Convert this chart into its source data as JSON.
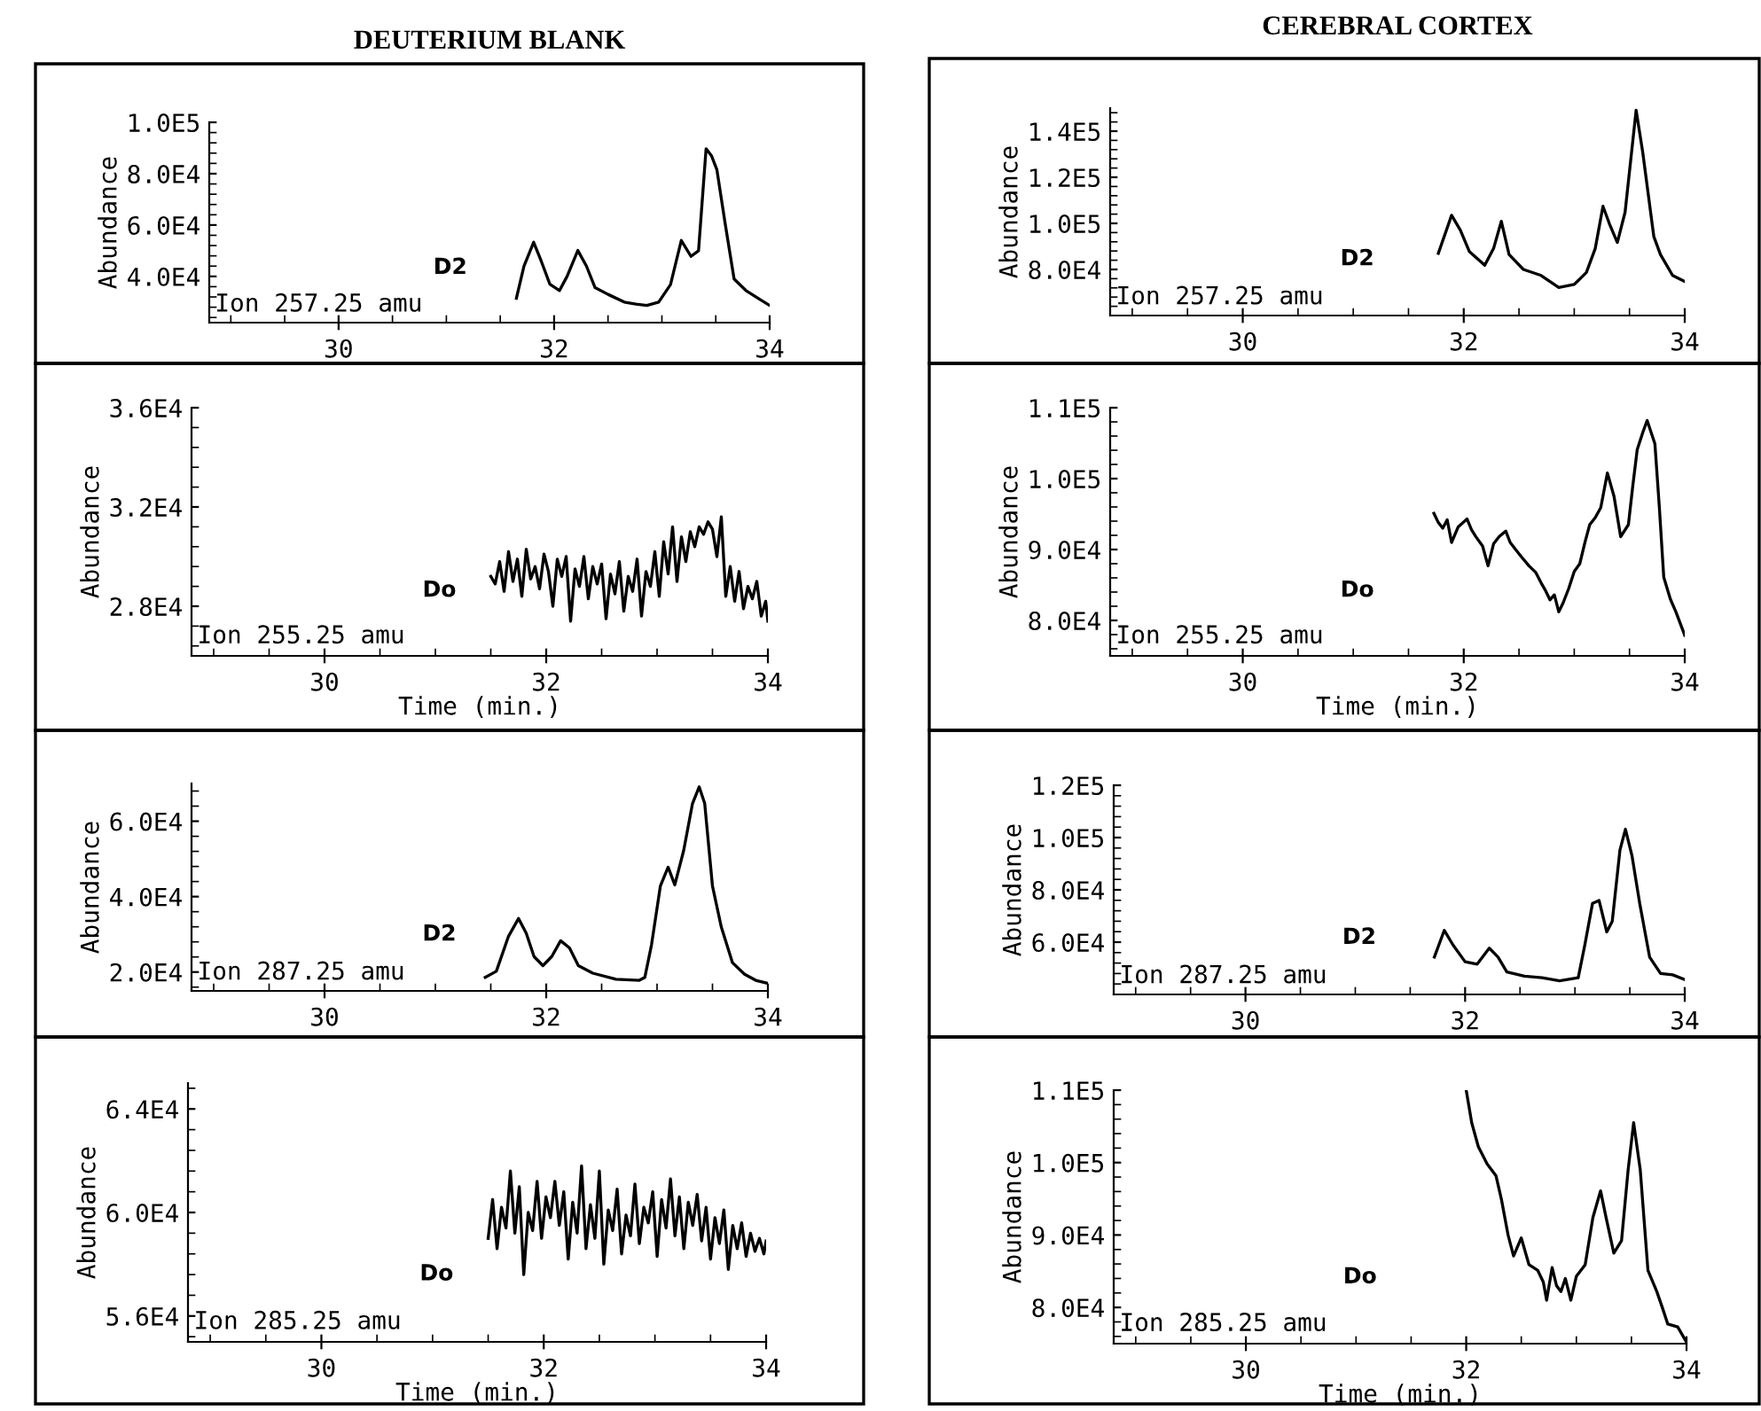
{
  "chart_data": [
    {
      "type": "line",
      "title": "DEUTERIUM BLANK",
      "ylabel": "Abundance",
      "color": "#000000",
      "annotations": [
        "D2",
        "Ion 257.25 amu"
      ],
      "xlim": [
        28.8,
        34
      ],
      "xticks": [
        30,
        32,
        34
      ],
      "ylim": [
        22000,
        100000
      ],
      "yticks": [
        {
          "value": 40000,
          "label": "4.0E4"
        },
        {
          "value": 60000,
          "label": "6.0E4"
        },
        {
          "value": 80000,
          "label": "8.0E4"
        },
        {
          "value": 100000,
          "label": "1.0E5"
        }
      ],
      "x": [
        31.65,
        31.72,
        31.81,
        31.88,
        31.96,
        32.05,
        32.12,
        32.22,
        32.3,
        32.38,
        32.5,
        32.65,
        32.76,
        32.86,
        32.97,
        33.08,
        33.18,
        33.27,
        33.34,
        33.41,
        33.46,
        33.51,
        33.59,
        33.67,
        33.78,
        33.91,
        34.0
      ],
      "values": [
        31500,
        44000,
        53300,
        46000,
        37000,
        34500,
        40000,
        50100,
        44000,
        35600,
        33000,
        30000,
        29200,
        28700,
        30000,
        36800,
        54000,
        47800,
        50000,
        89700,
        87000,
        81600,
        59800,
        39000,
        34500,
        31000,
        28700
      ]
    },
    {
      "type": "line",
      "title": "CEREBRAL CORTEX",
      "ylabel": "Abundance",
      "color": "#000000",
      "annotations": [
        "D2",
        "Ion 257.25 amu"
      ],
      "xlim": [
        28.8,
        34
      ],
      "xticks": [
        30,
        32,
        34
      ],
      "ylim": [
        60000,
        150000
      ],
      "yticks": [
        {
          "value": 80000,
          "label": "8.0E4"
        },
        {
          "value": 100000,
          "label": "1.0E5"
        },
        {
          "value": 120000,
          "label": "1.2E5"
        },
        {
          "value": 140000,
          "label": "1.4E5"
        }
      ],
      "x": [
        31.77,
        31.89,
        31.97,
        32.05,
        32.19,
        32.27,
        32.34,
        32.41,
        32.54,
        32.7,
        32.86,
        33.0,
        33.11,
        33.19,
        33.26,
        33.32,
        33.39,
        33.46,
        33.56,
        33.62,
        33.72,
        33.78,
        33.89,
        34.0
      ],
      "values": [
        87000,
        103500,
        97000,
        87800,
        81800,
        89100,
        100900,
        86500,
        80000,
        77400,
        72200,
        73500,
        78700,
        89100,
        107400,
        99600,
        91700,
        104800,
        149100,
        130800,
        94300,
        86500,
        77400,
        74800
      ]
    },
    {
      "type": "line",
      "ylabel": "Abundance",
      "xlabel": "Time (min.)",
      "color": "#000000",
      "annotations": [
        "Do",
        "Ion 255.25 amu"
      ],
      "xlim": [
        28.8,
        34
      ],
      "xticks": [
        30,
        32,
        34
      ],
      "ylim": [
        26000,
        36000
      ],
      "yticks": [
        {
          "value": 28000,
          "label": "2.8E4"
        },
        {
          "value": 32000,
          "label": "3.2E4"
        },
        {
          "value": 36000,
          "label": "3.6E4"
        }
      ],
      "x": [
        31.5,
        31.54,
        31.58,
        31.62,
        31.66,
        31.7,
        31.74,
        31.78,
        31.82,
        31.86,
        31.9,
        31.94,
        31.98,
        32.02,
        32.06,
        32.1,
        32.14,
        32.18,
        32.22,
        32.26,
        32.3,
        32.34,
        32.38,
        32.42,
        32.46,
        32.5,
        32.54,
        32.58,
        32.62,
        32.66,
        32.7,
        32.74,
        32.78,
        32.82,
        32.86,
        32.9,
        32.94,
        32.98,
        33.02,
        33.06,
        33.1,
        33.14,
        33.18,
        33.22,
        33.26,
        33.3,
        33.34,
        33.38,
        33.42,
        33.46,
        33.5,
        33.54,
        33.58,
        33.62,
        33.66,
        33.7,
        33.74,
        33.78,
        33.82,
        33.86,
        33.9,
        33.94,
        33.98,
        34.0
      ],
      "values": [
        29200,
        28900,
        29800,
        28600,
        30200,
        29000,
        29900,
        28400,
        30300,
        29100,
        29600,
        28700,
        30100,
        29400,
        28000,
        29900,
        29200,
        30000,
        27400,
        29500,
        28800,
        30000,
        28300,
        29600,
        28900,
        29700,
        27500,
        29300,
        28500,
        29800,
        27800,
        29200,
        28600,
        29900,
        27600,
        29400,
        28800,
        30200,
        28400,
        30600,
        29300,
        31200,
        29000,
        30800,
        29800,
        31000,
        30400,
        31200,
        30900,
        31400,
        31100,
        30000,
        31600,
        28400,
        29600,
        28200,
        29400,
        27900,
        28800,
        28300,
        29000,
        27600,
        28200,
        27400
      ]
    },
    {
      "type": "line",
      "ylabel": "Abundance",
      "xlabel": "Time (min.)",
      "color": "#000000",
      "annotations": [
        "Do",
        "Ion 255.25 amu"
      ],
      "xlim": [
        28.8,
        34
      ],
      "xticks": [
        30,
        32,
        34
      ],
      "ylim": [
        75000,
        110000
      ],
      "yticks": [
        {
          "value": 80000,
          "label": "8.0E4"
        },
        {
          "value": 90000,
          "label": "9.0E4"
        },
        {
          "value": 100000,
          "label": "1.0E5"
        },
        {
          "value": 110000,
          "label": "1.1E5"
        }
      ],
      "x": [
        31.73,
        31.77,
        31.81,
        31.85,
        31.89,
        31.95,
        32.03,
        32.07,
        32.11,
        32.17,
        32.22,
        32.27,
        32.32,
        32.38,
        32.42,
        32.46,
        32.52,
        32.59,
        32.65,
        32.7,
        32.74,
        32.78,
        32.82,
        32.86,
        32.9,
        32.95,
        33.0,
        33.05,
        33.1,
        33.14,
        33.19,
        33.24,
        33.3,
        33.36,
        33.42,
        33.49,
        33.53,
        33.57,
        33.62,
        33.66,
        33.73,
        33.77,
        33.81,
        33.87,
        33.92,
        34.0
      ],
      "values": [
        95100,
        93800,
        93000,
        94200,
        91000,
        93200,
        94300,
        92800,
        91800,
        90500,
        87700,
        90800,
        91800,
        92600,
        91000,
        90200,
        89000,
        87700,
        86800,
        85300,
        84200,
        82900,
        83600,
        81200,
        82500,
        84500,
        86900,
        88000,
        91200,
        93500,
        94500,
        95900,
        100800,
        97500,
        91800,
        93500,
        99000,
        104100,
        106500,
        108200,
        104900,
        96000,
        86100,
        83000,
        81200,
        77900
      ]
    },
    {
      "type": "line",
      "ylabel": "Abundance",
      "color": "#000000",
      "annotations": [
        "D2",
        "Ion 287.25 amu"
      ],
      "xlim": [
        28.8,
        34
      ],
      "xticks": [
        30,
        32,
        34
      ],
      "ylim": [
        15000,
        70000
      ],
      "yticks": [
        {
          "value": 20000,
          "label": "2.0E4"
        },
        {
          "value": 40000,
          "label": "4.0E4"
        },
        {
          "value": 60000,
          "label": "6.0E4"
        }
      ],
      "x": [
        31.45,
        31.55,
        31.66,
        31.75,
        31.82,
        31.89,
        31.97,
        32.05,
        32.13,
        32.21,
        32.29,
        32.42,
        32.63,
        32.84,
        32.89,
        32.95,
        33.03,
        33.1,
        33.16,
        33.24,
        33.32,
        33.38,
        33.43,
        33.5,
        33.58,
        33.68,
        33.79,
        33.89,
        34.0
      ],
      "values": [
        18600,
        20200,
        29500,
        34200,
        30300,
        24100,
        21700,
        24100,
        28300,
        26400,
        21700,
        19700,
        18100,
        17800,
        18600,
        27200,
        42800,
        47800,
        43100,
        52200,
        64700,
        69100,
        64700,
        42800,
        31900,
        22500,
        19400,
        17800,
        17000
      ]
    },
    {
      "type": "line",
      "ylabel": "Abundance",
      "color": "#000000",
      "annotations": [
        "D2",
        "Ion 287.25 amu"
      ],
      "xlim": [
        28.8,
        34
      ],
      "xticks": [
        30,
        32,
        34
      ],
      "ylim": [
        40000,
        120000
      ],
      "yticks": [
        {
          "value": 60000,
          "label": "6.0E4"
        },
        {
          "value": 80000,
          "label": "8.0E4"
        },
        {
          "value": 100000,
          "label": "1.0E5"
        },
        {
          "value": 120000,
          "label": "1.2E5"
        }
      ],
      "x": [
        31.72,
        31.81,
        31.89,
        32.0,
        32.11,
        32.22,
        32.3,
        32.38,
        32.54,
        32.7,
        32.86,
        33.03,
        33.09,
        33.16,
        33.22,
        33.29,
        33.34,
        33.41,
        33.46,
        33.52,
        33.59,
        33.68,
        33.78,
        33.89,
        34.0
      ],
      "values": [
        54300,
        64500,
        58900,
        52500,
        51600,
        57700,
        54300,
        48600,
        47000,
        46400,
        45200,
        46400,
        58900,
        74800,
        75900,
        63900,
        68000,
        95200,
        103200,
        93000,
        74800,
        54300,
        48000,
        47500,
        45700
      ]
    },
    {
      "type": "line",
      "ylabel": "Abundance",
      "xlabel": "Time (min.)",
      "color": "#000000",
      "annotations": [
        "Do",
        "Ion 285.25 amu"
      ],
      "xlim": [
        28.8,
        34
      ],
      "xticks": [
        30,
        32,
        34
      ],
      "ylim": [
        55000,
        65000
      ],
      "yticks": [
        {
          "value": 56000,
          "label": "5.6E4"
        },
        {
          "value": 60000,
          "label": "6.0E4"
        },
        {
          "value": 64000,
          "label": "6.4E4"
        }
      ],
      "x": [
        31.5,
        31.54,
        31.58,
        31.62,
        31.66,
        31.7,
        31.74,
        31.78,
        31.82,
        31.86,
        31.9,
        31.94,
        31.98,
        32.02,
        32.06,
        32.1,
        32.14,
        32.18,
        32.22,
        32.26,
        32.3,
        32.34,
        32.38,
        32.42,
        32.46,
        32.5,
        32.54,
        32.58,
        32.62,
        32.66,
        32.7,
        32.74,
        32.78,
        32.82,
        32.86,
        32.9,
        32.94,
        32.98,
        33.02,
        33.06,
        33.1,
        33.14,
        33.18,
        33.22,
        33.26,
        33.3,
        33.34,
        33.38,
        33.42,
        33.46,
        33.5,
        33.54,
        33.58,
        33.62,
        33.66,
        33.7,
        33.74,
        33.78,
        33.82,
        33.86,
        33.9,
        33.94,
        33.98,
        34.0
      ],
      "values": [
        59000,
        60500,
        58600,
        60200,
        59400,
        61600,
        59200,
        61000,
        57600,
        60000,
        59300,
        61200,
        59000,
        60600,
        59800,
        61200,
        59500,
        60800,
        58200,
        60400,
        59200,
        61800,
        58600,
        60300,
        59000,
        61600,
        58000,
        60100,
        59300,
        60900,
        58400,
        59900,
        59100,
        61100,
        58800,
        60200,
        59600,
        60800,
        58300,
        60500,
        59400,
        61300,
        59100,
        60600,
        58600,
        60400,
        59500,
        60700,
        58900,
        60200,
        58200,
        59800,
        58800,
        60100,
        57800,
        59500,
        58600,
        59600,
        58300,
        59200,
        58500,
        59000,
        58400,
        58900
      ]
    },
    {
      "type": "line",
      "ylabel": "Abundance",
      "xlabel": "Time (min.)",
      "color": "#000000",
      "annotations": [
        "Do",
        "Ion 285.25 amu"
      ],
      "xlim": [
        28.8,
        34
      ],
      "xticks": [
        30,
        32,
        34
      ],
      "ylim": [
        75000,
        110000
      ],
      "yticks": [
        {
          "value": 80000,
          "label": "8.0E4"
        },
        {
          "value": 90000,
          "label": "9.0E4"
        },
        {
          "value": 100000,
          "label": "1.0E5"
        },
        {
          "value": 110000,
          "label": "1.1E5"
        }
      ],
      "x": [
        32.0,
        32.05,
        32.11,
        32.19,
        32.27,
        32.32,
        32.38,
        32.43,
        32.5,
        32.57,
        32.65,
        32.7,
        32.73,
        32.78,
        32.82,
        32.86,
        32.9,
        32.95,
        33.0,
        33.08,
        33.15,
        33.22,
        33.27,
        33.34,
        33.41,
        33.47,
        33.52,
        33.58,
        33.65,
        33.73,
        33.78,
        33.83,
        33.92,
        34.0
      ],
      "values": [
        110000,
        105500,
        102200,
        99800,
        98200,
        94900,
        90000,
        87100,
        89600,
        85900,
        85100,
        83500,
        81000,
        85500,
        83000,
        82200,
        84000,
        81000,
        84300,
        85900,
        92400,
        96100,
        92400,
        87500,
        89200,
        99000,
        105500,
        99000,
        85100,
        82200,
        80000,
        77700,
        77300,
        75200
      ]
    }
  ]
}
